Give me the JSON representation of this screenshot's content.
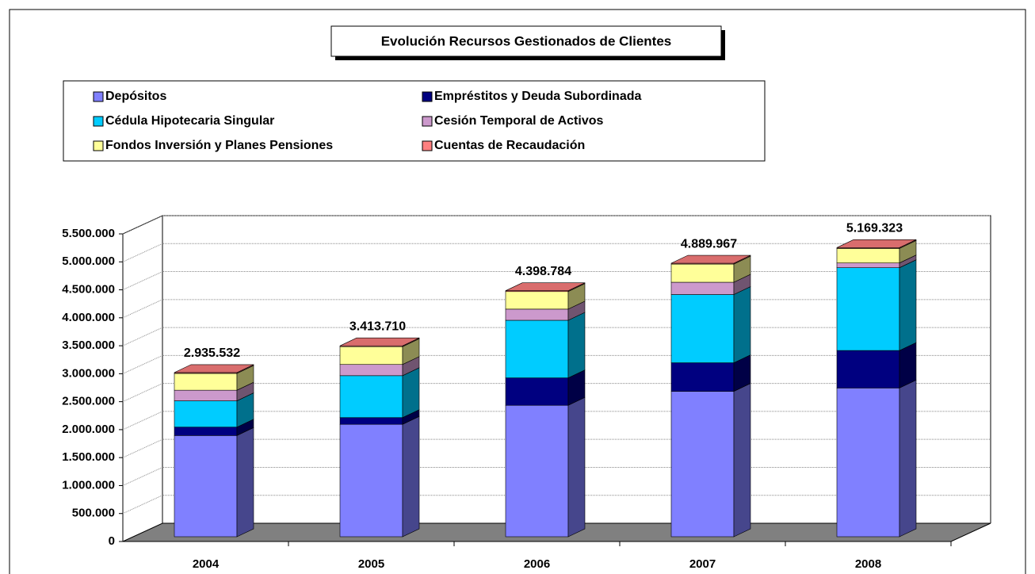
{
  "chart_data": {
    "type": "stacked_bar_3d",
    "title": "Evolución Recursos Gestionados de Clientes",
    "categories": [
      "2004",
      "2005",
      "2006",
      "2007",
      "2008"
    ],
    "series": [
      {
        "name": "Depósitos",
        "color": "#8080ff",
        "values": [
          1810000,
          2010000,
          2350000,
          2600000,
          2660000
        ]
      },
      {
        "name": "Empréstitos y Deuda Subordinada",
        "color": "#000080",
        "values": [
          150000,
          120000,
          490000,
          510000,
          670000
        ]
      },
      {
        "name": "Cédula Hipotecaria Singular",
        "color": "#00ccff",
        "values": [
          470000,
          750000,
          1030000,
          1220000,
          1480000
        ]
      },
      {
        "name": "Cesión Temporal de Activos",
        "color": "#cc99cc",
        "values": [
          190000,
          200000,
          200000,
          220000,
          85000
        ]
      },
      {
        "name": "Fondos Inversión y Planes Pensiones",
        "color": "#ffff99",
        "values": [
          300000,
          318710,
          313784,
          324967,
          259323
        ]
      },
      {
        "name": "Cuentas de Recaudación",
        "color": "#ff8080",
        "values": [
          15532,
          15000,
          15000,
          15000,
          15000
        ]
      }
    ],
    "totals": {
      "values": [
        2935532,
        3413710,
        4398784,
        4889967,
        5169323
      ],
      "value_labels": [
        "2.935.532",
        "3.413.710",
        "4.398.784",
        "4.889.967",
        "5.169.323"
      ]
    },
    "ylim": [
      0,
      5500000
    ],
    "yticks": [
      0,
      {
        "value": 500000,
        "label": "500.000"
      },
      {
        "value": 1000000,
        "label": "1.000.000"
      },
      {
        "value": 1500000,
        "label": "1.500.000"
      },
      {
        "value": 2000000,
        "label": "2.000.000"
      },
      {
        "value": 2500000,
        "label": "2.500.000"
      },
      {
        "value": 3000000,
        "label": "3.000.000"
      },
      {
        "value": 3500000,
        "label": "3.500.000"
      },
      {
        "value": 4000000,
        "label": "4.000.000"
      },
      {
        "value": 4500000,
        "label": "4.500.000"
      },
      {
        "value": 5000000,
        "label": "5.000.000"
      },
      {
        "value": 5500000,
        "label": "5.500.000"
      }
    ],
    "grid": true
  }
}
